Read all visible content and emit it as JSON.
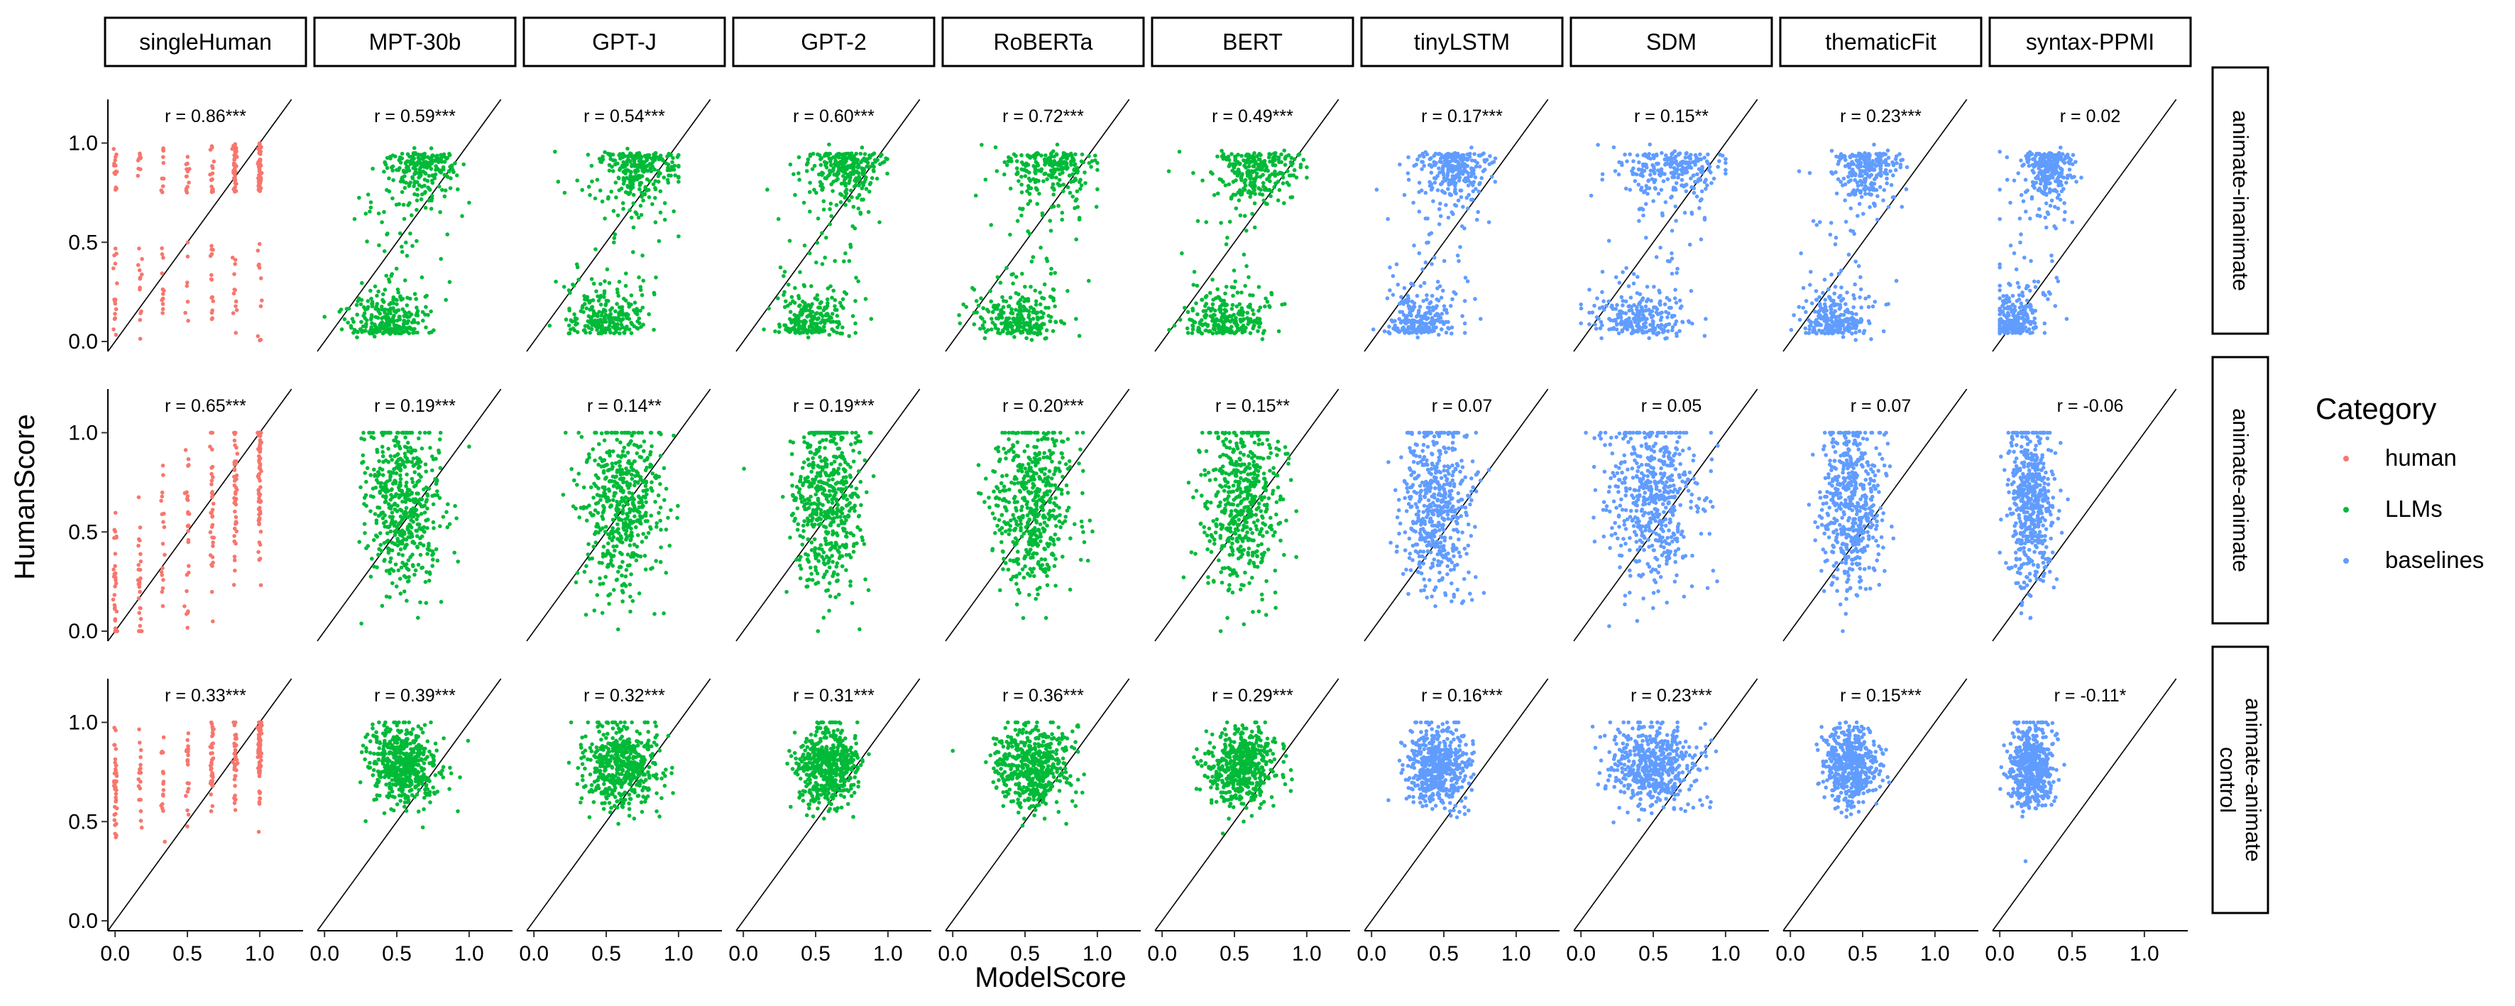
{
  "chart_data": {
    "type": "scatter",
    "xlabel": "ModelScore",
    "ylabel": "HumanScore",
    "xlim": [
      0,
      1
    ],
    "ylim": [
      0,
      1
    ],
    "x_ticks": [
      "0.0",
      "0.5",
      "1.0"
    ],
    "y_ticks": [
      "0.0",
      "0.5",
      "1.0"
    ],
    "reference_line": "y = x",
    "grid": false,
    "legend": {
      "title": "Category",
      "position": "right",
      "entries": [
        {
          "name": "human",
          "color": "#F8766D"
        },
        {
          "name": "LLMs",
          "color": "#00BA38"
        },
        {
          "name": "baselines",
          "color": "#619CFF"
        }
      ]
    },
    "columns": [
      {
        "name": "singleHuman",
        "category": "human"
      },
      {
        "name": "MPT-30b",
        "category": "LLMs"
      },
      {
        "name": "GPT-J",
        "category": "LLMs"
      },
      {
        "name": "GPT-2",
        "category": "LLMs"
      },
      {
        "name": "RoBERTa",
        "category": "LLMs"
      },
      {
        "name": "BERT",
        "category": "LLMs"
      },
      {
        "name": "tinyLSTM",
        "category": "baselines"
      },
      {
        "name": "SDM",
        "category": "baselines"
      },
      {
        "name": "thematicFit",
        "category": "baselines"
      },
      {
        "name": "syntax-PPMI",
        "category": "baselines"
      }
    ],
    "rows": [
      {
        "lines": [
          "animate-inanimate"
        ]
      },
      {
        "lines": [
          "animate-animate"
        ]
      },
      {
        "lines": [
          "animate-animate",
          "control"
        ]
      }
    ],
    "correlations": [
      [
        "r = 0.86***",
        "r = 0.59***",
        "r = 0.54***",
        "r = 0.60***",
        "r = 0.72***",
        "r = 0.49***",
        "r = 0.17***",
        "r = 0.15**",
        "r = 0.23***",
        "r = 0.02"
      ],
      [
        "r = 0.65***",
        "r = 0.19***",
        "r = 0.14**",
        "r = 0.19***",
        "r = 0.20***",
        "r = 0.15**",
        "r = 0.07",
        "r = 0.05",
        "r = 0.07",
        "r = -0.06"
      ],
      [
        "r = 0.33***",
        "r = 0.39***",
        "r = 0.32***",
        "r = 0.31***",
        "r = 0.36***",
        "r = 0.29***",
        "r = 0.16***",
        "r = 0.23***",
        "r = 0.15***",
        "r = -0.11*"
      ]
    ],
    "point_distributions": {
      "description_free_params": true,
      "x_center_by_column": [
        null,
        0.55,
        0.6,
        0.58,
        0.55,
        0.55,
        0.45,
        0.5,
        0.42,
        0.22
      ],
      "x_spread_by_column": [
        null,
        0.13,
        0.14,
        0.12,
        0.14,
        0.13,
        0.12,
        0.16,
        0.1,
        0.08
      ],
      "human_x_levels": [
        0,
        0.17,
        0.33,
        0.5,
        0.67,
        0.83,
        1.0
      ]
    }
  }
}
